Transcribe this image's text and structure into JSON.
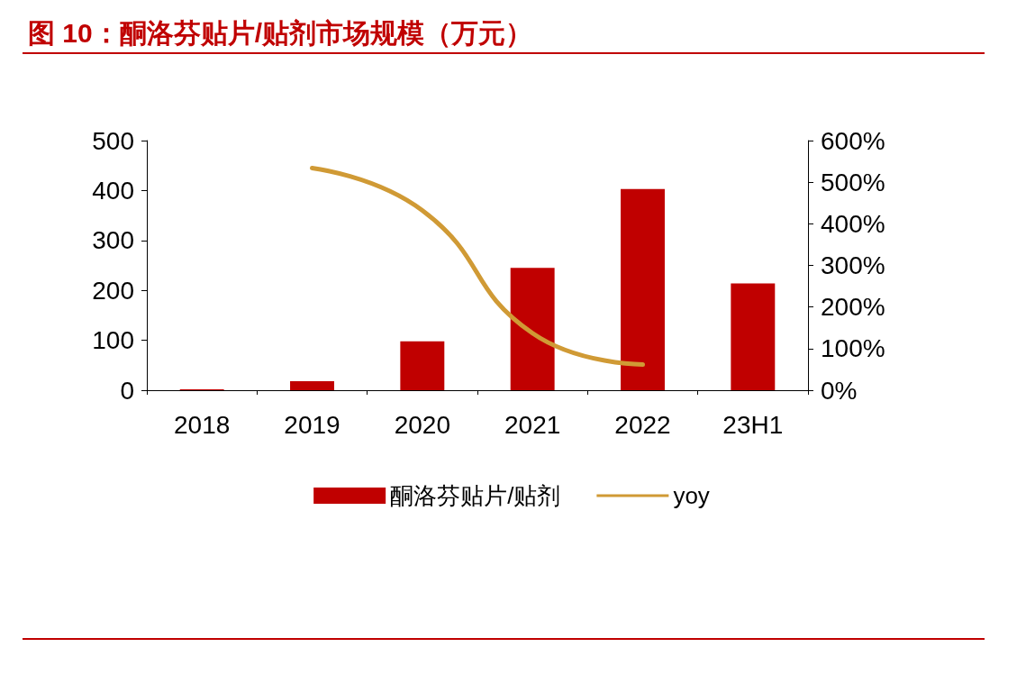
{
  "chart_data": {
    "type": "bar",
    "title": "图 10：酮洛芬贴片/贴剂市场规模（万元）",
    "categories": [
      "2018",
      "2019",
      "2020",
      "2021",
      "2022",
      "23H1"
    ],
    "series": [
      {
        "name": "酮洛芬贴片/贴剂",
        "color": "#c00000",
        "values": [
          2,
          18,
          98,
          245,
          403,
          214
        ]
      },
      {
        "name": "yoy",
        "type": "line",
        "axis": "y2",
        "color": "#d09a35",
        "values": [
          null,
          534,
          432,
          137,
          62,
          null
        ]
      }
    ],
    "ylim": [
      0,
      500
    ],
    "yticks": [
      0,
      100,
      200,
      300,
      400,
      500
    ],
    "y2lim": [
      0,
      600
    ],
    "y2ticks": [
      {
        "value": 0,
        "label": "0%"
      },
      {
        "value": 100,
        "label": "100%"
      },
      {
        "value": 200,
        "label": "200%"
      },
      {
        "value": 300,
        "label": "300%"
      },
      {
        "value": 400,
        "label": "400%"
      },
      {
        "value": 500,
        "label": "500%"
      },
      {
        "value": 600,
        "label": "600%"
      }
    ],
    "grid": false,
    "legend": "bottom",
    "marker": "none"
  }
}
